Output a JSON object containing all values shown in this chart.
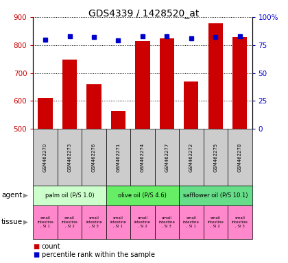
{
  "title": "GDS4339 / 1428520_at",
  "samples": [
    "GSM462270",
    "GSM462273",
    "GSM462276",
    "GSM462271",
    "GSM462274",
    "GSM462277",
    "GSM462272",
    "GSM462275",
    "GSM462278"
  ],
  "counts": [
    610,
    748,
    660,
    563,
    815,
    825,
    670,
    878,
    828
  ],
  "percentiles": [
    80,
    83,
    82,
    79,
    83,
    83,
    81,
    82,
    83
  ],
  "ylim_left": [
    500,
    900
  ],
  "ylim_right": [
    0,
    100
  ],
  "yticks_left": [
    500,
    600,
    700,
    800,
    900
  ],
  "yticks_right": [
    0,
    25,
    50,
    75,
    100
  ],
  "yticklabels_right": [
    "0",
    "25",
    "50",
    "75",
    "100%"
  ],
  "bar_color": "#cc0000",
  "dot_color": "#0000cc",
  "agent_groups": [
    {
      "label": "palm oil (P/S 1.0)",
      "start": 0,
      "end": 3,
      "color": "#ccffcc"
    },
    {
      "label": "olive oil (P/S 4.6)",
      "start": 3,
      "end": 6,
      "color": "#66ee66"
    },
    {
      "label": "safflower oil (P/S 10.1)",
      "start": 6,
      "end": 9,
      "color": "#66dd88"
    }
  ],
  "tissue_labels": [
    "small\nintestine\n, SI 1",
    "small\nintestine\n, SI 2",
    "small\nintestine\n, SI 3",
    "small\nintestine\n, SI 1",
    "small\nintestine\n, SI 2",
    "small\nintestine\n, SI 3",
    "small\nintestine\n, SI 1",
    "small\nintestine\n, SI 2",
    "small\nintestine\n, SI 3"
  ],
  "tissue_color": "#ff88cc",
  "sample_box_color": "#cccccc",
  "agent_row_label": "agent",
  "tissue_row_label": "tissue",
  "legend_count_color": "#cc0000",
  "legend_pct_color": "#0000cc",
  "title_fontsize": 10,
  "tick_fontsize": 7.5,
  "label_fontsize": 8
}
